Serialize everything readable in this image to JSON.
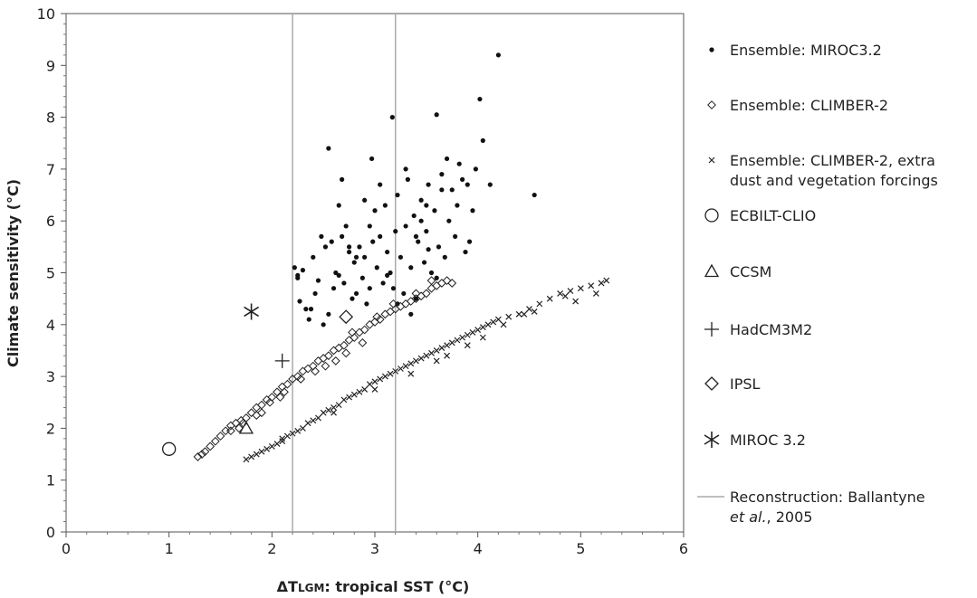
{
  "chart_data": {
    "type": "scatter",
    "xlim": [
      0,
      6
    ],
    "ylim": [
      0,
      10
    ],
    "x_ticks": [
      "0",
      "1",
      "2",
      "3",
      "4",
      "5",
      "6"
    ],
    "y_ticks": [
      "0",
      "1",
      "2",
      "3",
      "4",
      "5",
      "6",
      "7",
      "8",
      "9",
      "10"
    ],
    "xlabel": {
      "prefix": "ΔT",
      "subscript": "LGM",
      "suffix": ": tropical SST (°C)"
    },
    "ylabel": "Climate sensitivity (°C)",
    "grid": false,
    "legend_position": "right",
    "series": [
      {
        "name": "Ensemble: MIROC3.2",
        "marker": "dot",
        "points": [
          [
            2.22,
            5.1
          ],
          [
            2.25,
            4.9
          ],
          [
            2.27,
            4.45
          ],
          [
            2.3,
            5.05
          ],
          [
            2.33,
            4.3
          ],
          [
            2.36,
            4.1
          ],
          [
            2.38,
            4.3
          ],
          [
            2.4,
            5.3
          ],
          [
            2.42,
            4.6
          ],
          [
            2.45,
            4.85
          ],
          [
            2.5,
            4.0
          ],
          [
            2.52,
            5.5
          ],
          [
            2.55,
            4.2
          ],
          [
            2.58,
            5.6
          ],
          [
            2.62,
            5.0
          ],
          [
            2.55,
            7.4
          ],
          [
            2.6,
            4.7
          ],
          [
            2.65,
            4.95
          ],
          [
            2.68,
            5.7
          ],
          [
            2.7,
            4.8
          ],
          [
            2.72,
            5.9
          ],
          [
            2.75,
            5.4
          ],
          [
            2.78,
            4.5
          ],
          [
            2.8,
            5.2
          ],
          [
            2.82,
            4.6
          ],
          [
            2.85,
            5.5
          ],
          [
            2.88,
            4.9
          ],
          [
            2.9,
            5.3
          ],
          [
            2.92,
            4.4
          ],
          [
            2.95,
            5.9
          ],
          [
            2.98,
            5.6
          ],
          [
            3.0,
            6.2
          ],
          [
            3.02,
            5.1
          ],
          [
            3.05,
            5.7
          ],
          [
            3.08,
            4.8
          ],
          [
            3.1,
            6.3
          ],
          [
            3.12,
            5.4
          ],
          [
            3.15,
            5.0
          ],
          [
            3.18,
            4.7
          ],
          [
            3.2,
            5.8
          ],
          [
            3.22,
            6.5
          ],
          [
            3.25,
            5.3
          ],
          [
            3.28,
            4.6
          ],
          [
            3.3,
            5.9
          ],
          [
            3.32,
            6.8
          ],
          [
            3.35,
            5.1
          ],
          [
            3.38,
            6.1
          ],
          [
            3.4,
            4.5
          ],
          [
            3.42,
            5.6
          ],
          [
            3.45,
            6.4
          ],
          [
            3.48,
            5.2
          ],
          [
            3.5,
            5.8
          ],
          [
            3.52,
            6.7
          ],
          [
            3.55,
            5.0
          ],
          [
            3.58,
            6.2
          ],
          [
            3.6,
            4.9
          ],
          [
            3.62,
            5.5
          ],
          [
            3.65,
            6.9
          ],
          [
            3.68,
            5.3
          ],
          [
            3.7,
            7.2
          ],
          [
            3.72,
            6.0
          ],
          [
            3.75,
            6.6
          ],
          [
            3.78,
            5.7
          ],
          [
            3.8,
            6.3
          ],
          [
            3.82,
            7.1
          ],
          [
            3.85,
            6.8
          ],
          [
            3.88,
            5.4
          ],
          [
            3.9,
            6.7
          ],
          [
            3.92,
            5.6
          ],
          [
            3.95,
            6.2
          ],
          [
            3.98,
            7.0
          ],
          [
            4.02,
            8.35
          ],
          [
            4.05,
            7.55
          ],
          [
            4.12,
            6.7
          ],
          [
            4.2,
            9.2
          ],
          [
            4.55,
            6.5
          ],
          [
            3.6,
            8.05
          ],
          [
            3.17,
            8.0
          ],
          [
            2.97,
            7.2
          ],
          [
            2.68,
            6.8
          ],
          [
            3.05,
            6.7
          ],
          [
            3.3,
            7.0
          ],
          [
            3.5,
            6.3
          ],
          [
            3.65,
            6.6
          ],
          [
            3.4,
            5.7
          ],
          [
            2.9,
            6.4
          ],
          [
            2.75,
            5.5
          ],
          [
            2.82,
            5.3
          ],
          [
            3.12,
            4.95
          ],
          [
            2.95,
            4.7
          ],
          [
            2.65,
            6.3
          ],
          [
            3.45,
            6.0
          ],
          [
            2.48,
            5.7
          ],
          [
            3.52,
            5.45
          ],
          [
            3.35,
            4.2
          ],
          [
            3.22,
            4.4
          ],
          [
            2.25,
            4.95
          ]
        ]
      },
      {
        "name": "Ensemble: CLIMBER-2",
        "marker": "diamond",
        "points": [
          [
            1.28,
            1.45
          ],
          [
            1.32,
            1.5
          ],
          [
            1.35,
            1.55
          ],
          [
            1.4,
            1.65
          ],
          [
            1.45,
            1.75
          ],
          [
            1.5,
            1.85
          ],
          [
            1.55,
            1.95
          ],
          [
            1.6,
            2.05
          ],
          [
            1.65,
            2.1
          ],
          [
            1.7,
            2.15
          ],
          [
            1.75,
            2.2
          ],
          [
            1.8,
            2.3
          ],
          [
            1.85,
            2.4
          ],
          [
            1.9,
            2.45
          ],
          [
            1.95,
            2.55
          ],
          [
            2.0,
            2.6
          ],
          [
            2.05,
            2.7
          ],
          [
            2.1,
            2.8
          ],
          [
            2.15,
            2.85
          ],
          [
            2.2,
            2.95
          ],
          [
            2.25,
            3.0
          ],
          [
            2.3,
            3.1
          ],
          [
            2.35,
            3.15
          ],
          [
            2.4,
            3.2
          ],
          [
            2.45,
            3.3
          ],
          [
            2.5,
            3.35
          ],
          [
            2.55,
            3.4
          ],
          [
            2.6,
            3.5
          ],
          [
            2.65,
            3.55
          ],
          [
            2.7,
            3.6
          ],
          [
            2.75,
            3.7
          ],
          [
            2.8,
            3.75
          ],
          [
            2.85,
            3.85
          ],
          [
            2.9,
            3.9
          ],
          [
            2.95,
            4.0
          ],
          [
            3.0,
            4.05
          ],
          [
            3.05,
            4.1
          ],
          [
            3.1,
            4.2
          ],
          [
            3.15,
            4.25
          ],
          [
            3.2,
            4.3
          ],
          [
            3.25,
            4.35
          ],
          [
            3.3,
            4.4
          ],
          [
            3.35,
            4.45
          ],
          [
            3.4,
            4.5
          ],
          [
            3.45,
            4.55
          ],
          [
            3.5,
            4.6
          ],
          [
            3.55,
            4.7
          ],
          [
            3.6,
            4.75
          ],
          [
            3.65,
            4.8
          ],
          [
            3.7,
            4.85
          ],
          [
            3.75,
            4.8
          ],
          [
            1.6,
            1.95
          ],
          [
            1.68,
            2.0
          ],
          [
            1.72,
            2.1
          ],
          [
            1.9,
            2.3
          ],
          [
            1.98,
            2.5
          ],
          [
            2.08,
            2.6
          ],
          [
            2.28,
            2.95
          ],
          [
            2.52,
            3.2
          ],
          [
            2.72,
            3.45
          ],
          [
            2.88,
            3.65
          ],
          [
            3.02,
            4.15
          ],
          [
            3.18,
            4.4
          ],
          [
            3.4,
            4.6
          ],
          [
            3.55,
            4.85
          ],
          [
            2.62,
            3.3
          ],
          [
            1.85,
            2.25
          ],
          [
            2.12,
            2.7
          ],
          [
            2.42,
            3.1
          ],
          [
            2.78,
            3.85
          ]
        ]
      },
      {
        "name": "Ensemble: CLIMBER-2, extra dust and vegetation forcings",
        "marker": "x",
        "points": [
          [
            1.75,
            1.4
          ],
          [
            1.8,
            1.45
          ],
          [
            1.85,
            1.5
          ],
          [
            1.9,
            1.55
          ],
          [
            1.95,
            1.6
          ],
          [
            2.0,
            1.65
          ],
          [
            2.05,
            1.7
          ],
          [
            2.1,
            1.75
          ],
          [
            2.15,
            1.85
          ],
          [
            2.2,
            1.9
          ],
          [
            2.25,
            1.95
          ],
          [
            2.3,
            2.0
          ],
          [
            2.35,
            2.1
          ],
          [
            2.4,
            2.15
          ],
          [
            2.45,
            2.2
          ],
          [
            2.5,
            2.3
          ],
          [
            2.55,
            2.35
          ],
          [
            2.6,
            2.4
          ],
          [
            2.65,
            2.45
          ],
          [
            2.7,
            2.55
          ],
          [
            2.75,
            2.6
          ],
          [
            2.8,
            2.65
          ],
          [
            2.85,
            2.7
          ],
          [
            2.9,
            2.75
          ],
          [
            2.95,
            2.85
          ],
          [
            3.0,
            2.9
          ],
          [
            3.05,
            2.95
          ],
          [
            3.1,
            3.0
          ],
          [
            3.15,
            3.05
          ],
          [
            3.2,
            3.1
          ],
          [
            3.25,
            3.15
          ],
          [
            3.3,
            3.2
          ],
          [
            3.35,
            3.25
          ],
          [
            3.4,
            3.3
          ],
          [
            3.45,
            3.35
          ],
          [
            3.5,
            3.4
          ],
          [
            3.55,
            3.45
          ],
          [
            3.6,
            3.5
          ],
          [
            3.65,
            3.55
          ],
          [
            3.7,
            3.6
          ],
          [
            3.75,
            3.65
          ],
          [
            3.8,
            3.7
          ],
          [
            3.85,
            3.75
          ],
          [
            3.9,
            3.8
          ],
          [
            3.95,
            3.85
          ],
          [
            4.0,
            3.9
          ],
          [
            4.05,
            3.95
          ],
          [
            4.1,
            4.0
          ],
          [
            4.15,
            4.05
          ],
          [
            4.2,
            4.1
          ],
          [
            4.3,
            4.15
          ],
          [
            4.4,
            4.2
          ],
          [
            4.5,
            4.3
          ],
          [
            4.6,
            4.4
          ],
          [
            4.7,
            4.5
          ],
          [
            4.8,
            4.6
          ],
          [
            4.9,
            4.65
          ],
          [
            5.0,
            4.7
          ],
          [
            5.1,
            4.75
          ],
          [
            5.2,
            4.8
          ],
          [
            5.25,
            4.85
          ],
          [
            3.35,
            3.05
          ],
          [
            3.6,
            3.3
          ],
          [
            3.9,
            3.6
          ],
          [
            4.25,
            4.0
          ],
          [
            4.55,
            4.25
          ],
          [
            4.95,
            4.45
          ],
          [
            5.15,
            4.6
          ],
          [
            2.1,
            1.8
          ],
          [
            2.6,
            2.3
          ],
          [
            3.0,
            2.75
          ],
          [
            3.7,
            3.4
          ],
          [
            4.05,
            3.75
          ],
          [
            4.45,
            4.2
          ],
          [
            4.85,
            4.55
          ]
        ]
      },
      {
        "name": "ECBILT-CLIO",
        "marker": "circle",
        "points": [
          [
            1.0,
            1.6
          ]
        ]
      },
      {
        "name": "CCSM",
        "marker": "triangle",
        "points": [
          [
            1.75,
            2.0
          ]
        ]
      },
      {
        "name": "HadCM3M2",
        "marker": "plus",
        "points": [
          [
            2.1,
            3.3
          ]
        ]
      },
      {
        "name": "IPSL",
        "marker": "diamond-large",
        "points": [
          [
            2.72,
            4.15
          ]
        ]
      },
      {
        "name": "MIROC 3.2",
        "marker": "asterisk",
        "points": [
          [
            1.8,
            4.25
          ]
        ]
      }
    ],
    "reference_lines": [
      {
        "legend_label": [
          "Reconstruction: Ballantyne",
          "et al., 2005"
        ],
        "x": [
          2.2,
          3.2
        ],
        "color": "#aaaaaa"
      }
    ]
  }
}
